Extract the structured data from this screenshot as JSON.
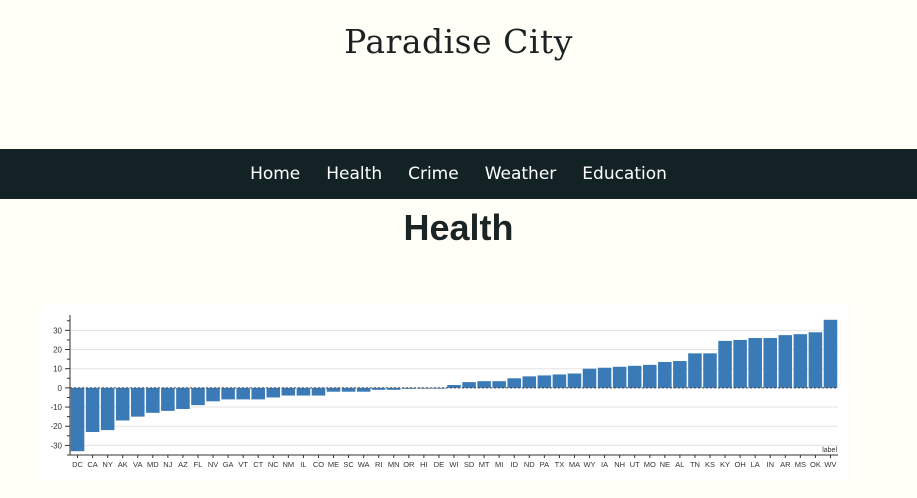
{
  "site": {
    "title": "Paradise City"
  },
  "nav": {
    "items": [
      {
        "label": "Home"
      },
      {
        "label": "Health"
      },
      {
        "label": "Crime"
      },
      {
        "label": "Weather"
      },
      {
        "label": "Education"
      }
    ]
  },
  "page": {
    "heading": "Health"
  },
  "colors": {
    "bar": "#3a7ab6",
    "nav_bg": "#122225",
    "page_bg": "#fffef7"
  },
  "chart_data": {
    "type": "bar",
    "categories": [
      "DC",
      "CA",
      "NY",
      "AK",
      "VA",
      "MD",
      "NJ",
      "AZ",
      "FL",
      "NV",
      "GA",
      "VT",
      "CT",
      "NC",
      "NM",
      "IL",
      "CO",
      "ME",
      "SC",
      "WA",
      "RI",
      "MN",
      "OR",
      "HI",
      "DE",
      "WI",
      "SD",
      "MT",
      "MI",
      "ID",
      "ND",
      "PA",
      "TX",
      "MA",
      "WY",
      "IA",
      "NH",
      "UT",
      "MO",
      "NE",
      "AL",
      "TN",
      "KS",
      "KY",
      "OH",
      "LA",
      "IN",
      "AR",
      "MS",
      "OK",
      "WV"
    ],
    "values": [
      -33,
      -23,
      -22,
      -17,
      -15,
      -13,
      -12,
      -11,
      -9,
      -7,
      -6,
      -6,
      -6,
      -5,
      -4,
      -4,
      -4,
      -2,
      -2,
      -2,
      -1,
      -1,
      -0.5,
      -0.3,
      -0.2,
      1.5,
      3,
      3.5,
      3.5,
      5,
      6,
      6.5,
      7,
      7.5,
      10,
      10.5,
      11,
      11.5,
      12,
      13.5,
      14,
      18,
      18,
      24.5,
      25,
      26,
      26,
      27.5,
      28,
      29,
      35.5
    ],
    "ylim": [
      -35,
      38
    ],
    "yticks": [
      -30,
      -20,
      -10,
      0,
      10,
      20,
      30
    ],
    "grid": true,
    "annotation": "label"
  }
}
